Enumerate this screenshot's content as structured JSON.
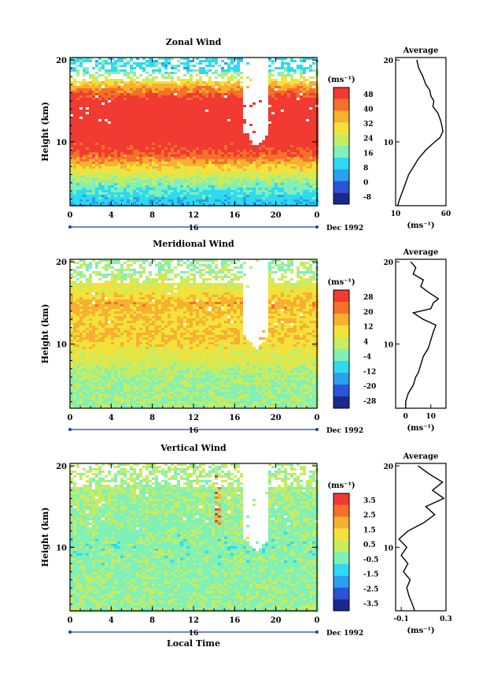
{
  "chart_data": [
    {
      "type": "heatmap",
      "title": "Zonal Wind",
      "ylabel": "Height (km)",
      "y_tick_labels": [
        "20",
        "10"
      ],
      "ylim": [
        2.2,
        20.3
      ],
      "x_tick_labels": [
        "0",
        "4",
        "8",
        "12",
        "16",
        "20",
        "0"
      ],
      "xlim": [
        0,
        24
      ],
      "date_label": "16",
      "month_label": "Dec 1992",
      "colorbar": {
        "unit": "(ms⁻¹)",
        "tick_labels": [
          "48",
          "40",
          "32",
          "24",
          "16",
          "8",
          "0",
          "-8"
        ],
        "colors": [
          "#1a2a8c",
          "#2b54d6",
          "#2aa0f0",
          "#2fd9f0",
          "#7ff0b8",
          "#c8ec60",
          "#f4e23a",
          "#f8b030",
          "#f57028",
          "#f03a32"
        ]
      },
      "field_description_rows": [
        {
          "height_km": 19,
          "value_ms": 12
        },
        {
          "height_km": 17,
          "value_ms": 34
        },
        {
          "height_km": 15,
          "value_ms": 48
        },
        {
          "height_km": 13,
          "value_ms": 50
        },
        {
          "height_km": 11,
          "value_ms": 48
        },
        {
          "height_km": 9,
          "value_ms": 44
        },
        {
          "height_km": 7,
          "value_ms": 30
        },
        {
          "height_km": 5,
          "value_ms": 18
        },
        {
          "height_km": 3,
          "value_ms": 10
        }
      ],
      "average_profile": {
        "title": "Average",
        "xlabel": "(ms⁻¹)",
        "x_tick_labels": [
          "10",
          "60"
        ],
        "xlim": [
          10,
          60
        ],
        "y_tick_labels": [
          "20",
          "10"
        ],
        "points": [
          [
            12,
            2.2
          ],
          [
            14,
            3
          ],
          [
            17,
            4
          ],
          [
            20,
            5
          ],
          [
            23,
            6
          ],
          [
            28,
            7
          ],
          [
            33,
            8
          ],
          [
            40,
            9
          ],
          [
            47,
            9.8
          ],
          [
            54,
            10.5
          ],
          [
            57,
            11.3
          ],
          [
            55,
            12.5
          ],
          [
            52,
            13.5
          ],
          [
            47,
            14.3
          ],
          [
            48,
            15
          ],
          [
            45,
            15.6
          ],
          [
            44,
            16.3
          ],
          [
            40,
            17
          ],
          [
            37,
            18
          ],
          [
            33,
            19
          ],
          [
            31,
            20
          ]
        ]
      }
    },
    {
      "type": "heatmap",
      "title": "Meridional Wind",
      "ylabel": "Height (km)",
      "y_tick_labels": [
        "20",
        "10"
      ],
      "ylim": [
        2.2,
        20.3
      ],
      "x_tick_labels": [
        "0",
        "4",
        "8",
        "12",
        "16",
        "20",
        "0"
      ],
      "xlim": [
        0,
        24
      ],
      "date_label": "16",
      "month_label": "Dec 1992",
      "colorbar": {
        "unit": "(ms⁻¹)",
        "tick_labels": [
          "28",
          "20",
          "12",
          "4",
          "-4",
          "-12",
          "-20",
          "-28"
        ],
        "colors": [
          "#1a2a8c",
          "#2b54d6",
          "#2aa0f0",
          "#2fd9f0",
          "#7ff0b8",
          "#c8ec60",
          "#f4e23a",
          "#f8b030",
          "#f57028",
          "#f03a32"
        ]
      },
      "field_description_rows": [
        {
          "height_km": 19,
          "value_ms": 0
        },
        {
          "height_km": 17,
          "value_ms": 6
        },
        {
          "height_km": 15,
          "value_ms": 14
        },
        {
          "height_km": 13,
          "value_ms": 10
        },
        {
          "height_km": 11,
          "value_ms": 12
        },
        {
          "height_km": 9,
          "value_ms": 6
        },
        {
          "height_km": 7,
          "value_ms": 2
        },
        {
          "height_km": 5,
          "value_ms": -1
        },
        {
          "height_km": 3,
          "value_ms": 0
        }
      ],
      "average_profile": {
        "title": "Average",
        "xlabel": "(ms⁻¹)",
        "x_tick_labels": [
          "0",
          "10"
        ],
        "xlim": [
          -4,
          16
        ],
        "y_tick_labels": [
          "20",
          "10"
        ],
        "points": [
          [
            0,
            2.2
          ],
          [
            0,
            3
          ],
          [
            1,
            4
          ],
          [
            3,
            5
          ],
          [
            4,
            6
          ],
          [
            5,
            6.5
          ],
          [
            6,
            7.5
          ],
          [
            7,
            8.5
          ],
          [
            9,
            9.5
          ],
          [
            10,
            10.5
          ],
          [
            11,
            11.5
          ],
          [
            12,
            12.3
          ],
          [
            7,
            13
          ],
          [
            3,
            13.8
          ],
          [
            10,
            14.3
          ],
          [
            11,
            15
          ],
          [
            13,
            15.5
          ],
          [
            9,
            16.3
          ],
          [
            6,
            17
          ],
          [
            7,
            17.8
          ],
          [
            3,
            18.5
          ],
          [
            4,
            19.3
          ],
          [
            2,
            20
          ]
        ]
      }
    },
    {
      "type": "heatmap",
      "title": "Vertical Wind",
      "ylabel": "Height (km)",
      "xlabel": "Local Time",
      "y_tick_labels": [
        "20",
        "10"
      ],
      "ylim": [
        2.2,
        20.3
      ],
      "x_tick_labels": [
        "0",
        "4",
        "8",
        "12",
        "16",
        "20",
        "0"
      ],
      "xlim": [
        0,
        24
      ],
      "date_label": "16",
      "month_label": "Dec 1992",
      "colorbar": {
        "unit": "(ms⁻¹)",
        "tick_labels": [
          "3.5",
          "2.5",
          "1.5",
          "0.5",
          "-0.5",
          "-1.5",
          "-2.5",
          "-3.5"
        ],
        "colors": [
          "#1a2a8c",
          "#2b54d6",
          "#2aa0f0",
          "#2fd9f0",
          "#7ff0b8",
          "#c8ec60",
          "#f4e23a",
          "#f8b030",
          "#f57028",
          "#f03a32"
        ]
      },
      "field_description_rows": [
        {
          "height_km": 19,
          "value_ms": 0.2
        },
        {
          "height_km": 16,
          "value_ms": 0.0
        },
        {
          "height_km": 13,
          "value_ms": -0.2
        },
        {
          "height_km": 10,
          "value_ms": -0.3
        },
        {
          "height_km": 7,
          "value_ms": -0.2
        },
        {
          "height_km": 4,
          "value_ms": -0.1
        }
      ],
      "average_profile": {
        "title": "Average",
        "xlabel": "(ms⁻¹)",
        "x_tick_labels": [
          "-0.1",
          "0.3"
        ],
        "xlim": [
          -0.15,
          0.3
        ],
        "y_tick_labels": [
          "20",
          "10"
        ],
        "points": [
          [
            0.02,
            2.2
          ],
          [
            0.0,
            3
          ],
          [
            -0.03,
            4
          ],
          [
            -0.05,
            5
          ],
          [
            -0.02,
            6
          ],
          [
            -0.08,
            7
          ],
          [
            -0.04,
            8
          ],
          [
            -0.1,
            9
          ],
          [
            -0.05,
            10
          ],
          [
            -0.12,
            11
          ],
          [
            -0.04,
            12
          ],
          [
            0.1,
            13
          ],
          [
            0.2,
            14
          ],
          [
            0.12,
            15
          ],
          [
            0.28,
            16
          ],
          [
            0.18,
            17
          ],
          [
            0.27,
            18
          ],
          [
            0.15,
            19
          ],
          [
            0.05,
            20
          ]
        ]
      }
    }
  ]
}
